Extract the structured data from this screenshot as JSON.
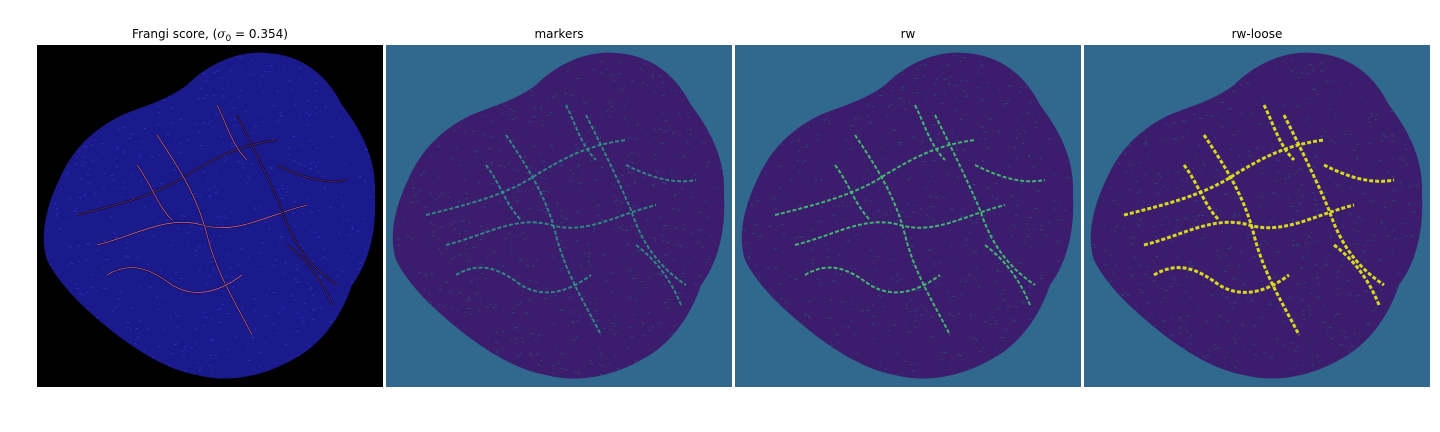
{
  "panels": [
    {
      "key": "frangi",
      "title_prefix": "Frangi score, (",
      "title_symbol": "σ",
      "title_subscript": "0",
      "title_value": " = 0.354)",
      "background": "#000000",
      "fill": "#1a1a8c",
      "accent": "#e26ab0"
    },
    {
      "key": "markers",
      "title": "markers",
      "background": "#31688e",
      "fill": "#3b1c6d",
      "accent": "#2ea387"
    },
    {
      "key": "rw",
      "title": "rw",
      "background": "#31688e",
      "fill": "#3b1c6d",
      "accent": "#42be71"
    },
    {
      "key": "rw_loose",
      "title": "rw-loose",
      "background": "#31688e",
      "fill": "#3b1c6d",
      "accent": "#dde318"
    }
  ]
}
